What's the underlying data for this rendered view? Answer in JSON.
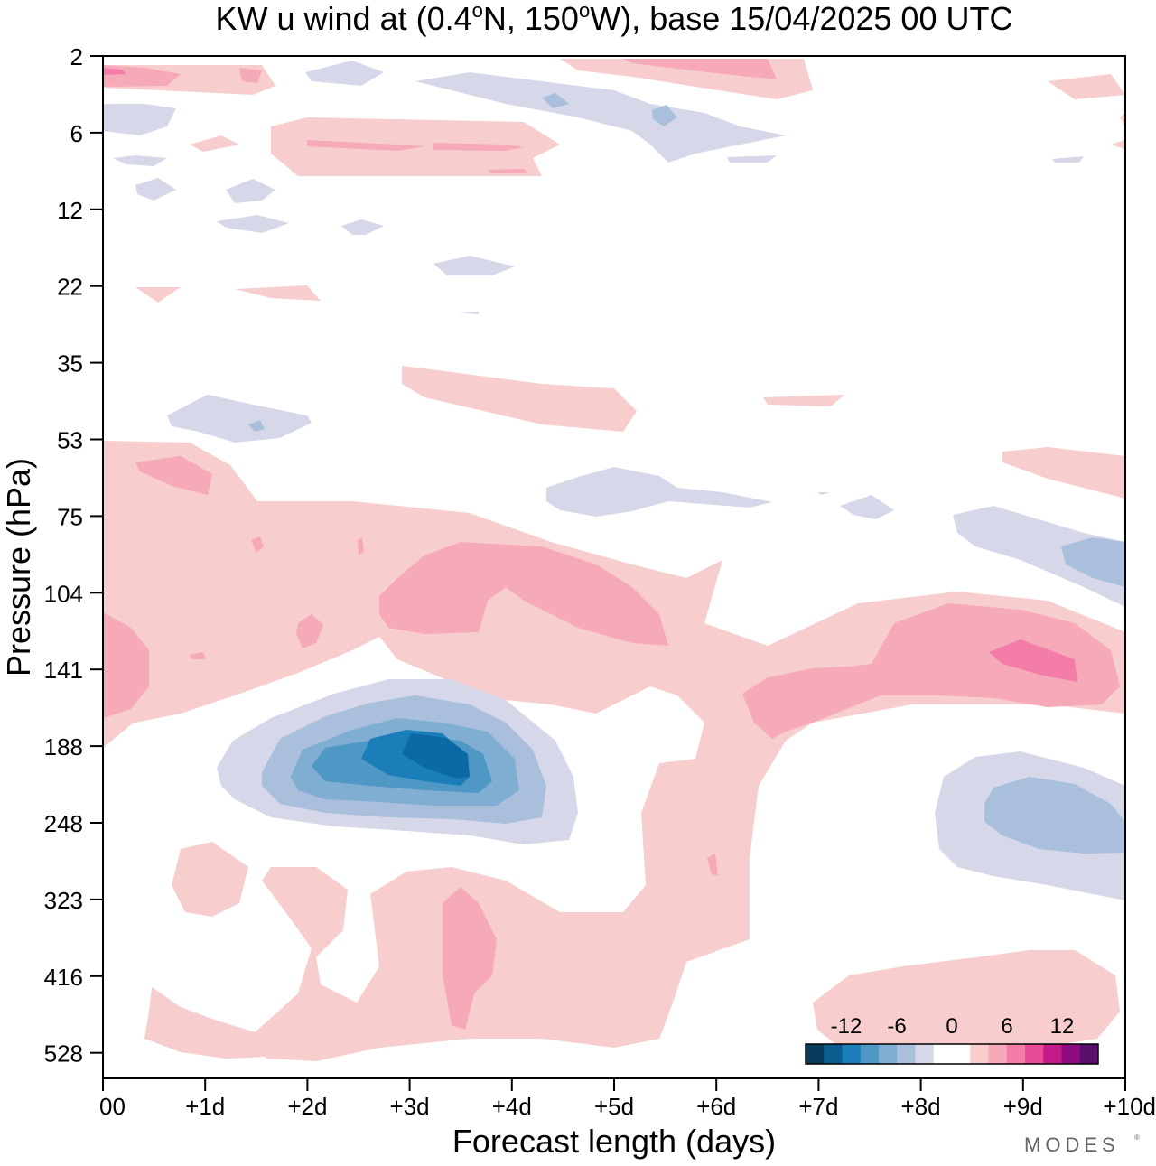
{
  "chart_data": {
    "type": "heatmap",
    "title": "KW u wind at (0.4°N, 150°W),  base 15/04/2025  00 UTC",
    "title_parts": {
      "a": "KW u wind at (0.4",
      "deg1": "o",
      "b": "N, 150",
      "deg2": "o",
      "c": "W),  base 15/04/2025  00 UTC"
    },
    "xlabel": "Forecast length (days)",
    "ylabel": "Pressure (hPa)",
    "x_ticks": [
      "00",
      "+1d",
      "+2d",
      "+3d",
      "+4d",
      "+5d",
      "+6d",
      "+7d",
      "+8d",
      "+9d",
      "+10d"
    ],
    "y_ticks": [
      "2",
      "6",
      "12",
      "22",
      "35",
      "53",
      "75",
      "104",
      "141",
      "188",
      "248",
      "323",
      "416",
      "528"
    ],
    "xlim_days": [
      0,
      10
    ],
    "y_scale": "pressure levels (top 2 hPa, bottom ~600 hPa)",
    "colorbar": {
      "tick_labels": [
        "-12",
        "-6",
        "0",
        "6",
        "12"
      ],
      "colors": [
        "#083c5c",
        "#0b5d8f",
        "#1c7eb8",
        "#4f98c6",
        "#80aed3",
        "#a9bfdc",
        "#d6d8ea",
        "#ffffff",
        "#ffffff",
        "#f8cdcd",
        "#f5a9b9",
        "#f47ca8",
        "#e84b9a",
        "#c51b8a",
        "#8e0b80",
        "#5a0f6e"
      ]
    },
    "anomalies": [
      {
        "name": "negative-core",
        "day": 3.5,
        "pressure_hPa": 188,
        "value": -11
      },
      {
        "name": "positive-upper-right",
        "day": 9.2,
        "pressure_hPa": 141,
        "value": 7
      },
      {
        "name": "positive-mid",
        "day": 3.5,
        "pressure_hPa": 104,
        "value": 4
      },
      {
        "name": "negative-right",
        "day": 9.5,
        "pressure_hPa": 248,
        "value": -5
      }
    ]
  },
  "watermark": "MODES"
}
